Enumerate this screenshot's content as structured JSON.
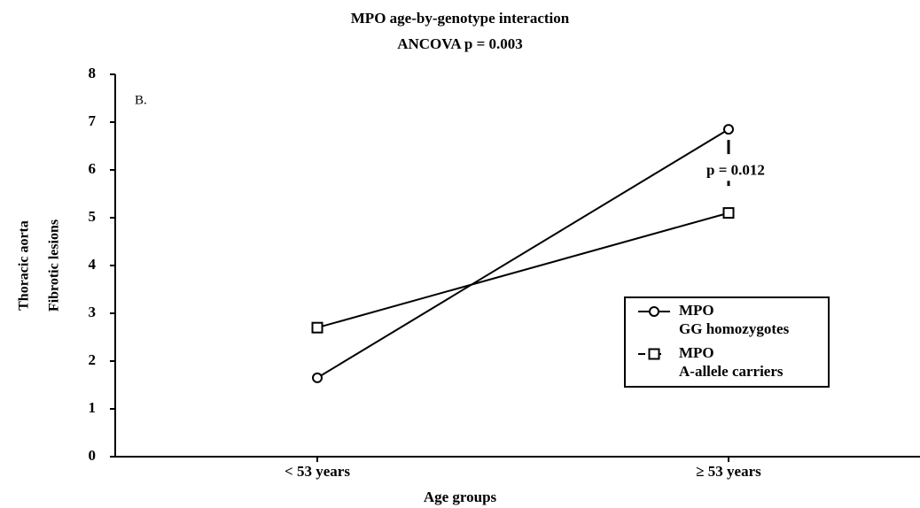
{
  "chart_data": {
    "type": "line",
    "title": "MPO age-by-genotype interaction",
    "subtitle": "ANCOVA p = 0.003",
    "annotation": "B.",
    "significance": "p = 0.012",
    "ylabel": [
      "Thoracic aorta",
      "Fibrotic lesions"
    ],
    "xlabel": "Age groups",
    "categories": [
      "< 53 years",
      "≥ 53 years"
    ],
    "series": [
      {
        "name": [
          "MPO",
          "GG homozygotes"
        ],
        "color": "#000000",
        "marker": "circle",
        "values": [
          1.65,
          6.85
        ]
      },
      {
        "name": [
          "MPO",
          "A-allele carriers"
        ],
        "color": "#000000",
        "marker": "square",
        "values": [
          2.7,
          5.1
        ]
      }
    ],
    "ylim": [
      0,
      8
    ],
    "yticks": [
      0,
      1,
      2,
      3,
      4,
      5,
      6,
      7,
      8
    ],
    "legend": "right"
  }
}
